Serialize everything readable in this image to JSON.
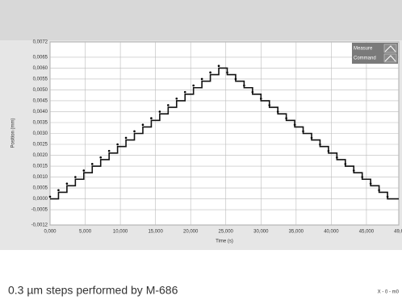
{
  "chart_data": {
    "type": "step",
    "caption": "0.3 µm steps performed by M-686",
    "corner_note": "X - 0 - m0",
    "xlabel": "Time (s)",
    "ylabel": "Position (mm)",
    "legend": "top-right",
    "grid": true,
    "xlim": [
      0,
      49.6
    ],
    "ylim": [
      -0.0012,
      0.0072
    ],
    "xticks": [
      {
        "value": 0,
        "label": "0,000"
      },
      {
        "value": 5,
        "label": "5,000"
      },
      {
        "value": 10,
        "label": "10,000"
      },
      {
        "value": 15,
        "label": "15,000"
      },
      {
        "value": 20,
        "label": "20,000"
      },
      {
        "value": 25,
        "label": "25,000"
      },
      {
        "value": 30,
        "label": "30,000"
      },
      {
        "value": 35,
        "label": "35,000"
      },
      {
        "value": 40,
        "label": "40,000"
      },
      {
        "value": 45,
        "label": "45,000"
      },
      {
        "value": 49.6,
        "label": "49,6"
      }
    ],
    "yticks": [
      {
        "value": 0.0072,
        "label": "0,0072"
      },
      {
        "value": 0.0065,
        "label": "0,0065"
      },
      {
        "value": 0.006,
        "label": "0,0060"
      },
      {
        "value": 0.0055,
        "label": "0,0055"
      },
      {
        "value": 0.005,
        "label": "0,0050"
      },
      {
        "value": 0.0045,
        "label": "0,0045"
      },
      {
        "value": 0.004,
        "label": "0,0040"
      },
      {
        "value": 0.0035,
        "label": "0,0035"
      },
      {
        "value": 0.003,
        "label": "0,0030"
      },
      {
        "value": 0.0025,
        "label": "0,0025"
      },
      {
        "value": 0.002,
        "label": "0,0020"
      },
      {
        "value": 0.0015,
        "label": "0,0015"
      },
      {
        "value": 0.001,
        "label": "0,0010"
      },
      {
        "value": 0.0005,
        "label": "0,0005"
      },
      {
        "value": 0,
        "label": "0,0000"
      },
      {
        "value": -0.0005,
        "label": "-0,0005"
      },
      {
        "value": -0.0012,
        "label": "-0,0012"
      }
    ],
    "x": [
      0,
      1.2,
      2.4,
      3.6,
      4.8,
      6,
      7.2,
      8.4,
      9.6,
      10.8,
      12,
      13.2,
      14.4,
      15.6,
      16.8,
      18,
      19.2,
      20.4,
      21.6,
      22.8,
      24,
      25.2,
      26.4,
      27.6,
      28.8,
      30,
      31.2,
      32.4,
      33.6,
      34.8,
      36,
      37.2,
      38.4,
      39.6,
      40.8,
      42,
      43.2,
      44.4,
      45.6,
      46.8,
      48
    ],
    "series": [
      {
        "name": "Measure",
        "color": "#000000",
        "marker": "dot",
        "values": [
          0.0001,
          0.0004,
          0.0007,
          0.001,
          0.0013,
          0.0016,
          0.0019,
          0.0022,
          0.0025,
          0.0028,
          0.0031,
          0.0034,
          0.0037,
          0.004,
          0.0043,
          0.0046,
          0.0049,
          0.0052,
          0.0055,
          0.0058,
          0.0061,
          0.0058,
          0.0055,
          0.0052,
          0.0049,
          0.0046,
          0.0043,
          0.004,
          0.0037,
          0.0034,
          0.0031,
          0.0028,
          0.0025,
          0.0022,
          0.0019,
          0.0016,
          0.0013,
          0.001,
          0.0007,
          0.0004,
          0.0001
        ]
      },
      {
        "name": "Command",
        "color": "#111111",
        "marker": "none",
        "values": [
          0,
          0.0003,
          0.0006,
          0.0009,
          0.0012,
          0.0015,
          0.0018,
          0.0021,
          0.0024,
          0.0027,
          0.003,
          0.0033,
          0.0036,
          0.0039,
          0.0042,
          0.0045,
          0.0048,
          0.0051,
          0.0054,
          0.0057,
          0.006,
          0.0057,
          0.0054,
          0.0051,
          0.0048,
          0.0045,
          0.0042,
          0.0039,
          0.0036,
          0.0033,
          0.003,
          0.0027,
          0.0024,
          0.0021,
          0.0018,
          0.0015,
          0.0012,
          0.0009,
          0.0006,
          0.0003,
          0
        ]
      }
    ]
  }
}
